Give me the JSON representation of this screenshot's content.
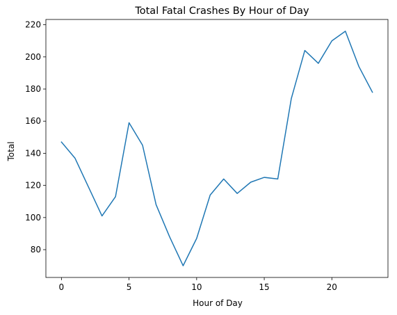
{
  "chart_data": {
    "type": "line",
    "title": "Total Fatal Crashes By Hour of Day",
    "xlabel": "Hour of Day",
    "ylabel": "Total",
    "xlim": [
      -1.15,
      24.15
    ],
    "ylim": [
      62.7,
      223.3
    ],
    "xticks": [
      0,
      5,
      10,
      15,
      20
    ],
    "yticks": [
      80,
      100,
      120,
      140,
      160,
      180,
      200,
      220
    ],
    "grid": false,
    "series_color": "#1f77b4",
    "x": [
      0,
      1,
      2,
      3,
      4,
      5,
      6,
      7,
      8,
      9,
      10,
      11,
      12,
      13,
      14,
      15,
      16,
      17,
      18,
      19,
      20,
      21,
      22,
      23
    ],
    "values": [
      147,
      137,
      119,
      101,
      113,
      159,
      145,
      108,
      88,
      70,
      87,
      114,
      124,
      115,
      122,
      125,
      124,
      174,
      204,
      196,
      210,
      216,
      194,
      178
    ]
  }
}
